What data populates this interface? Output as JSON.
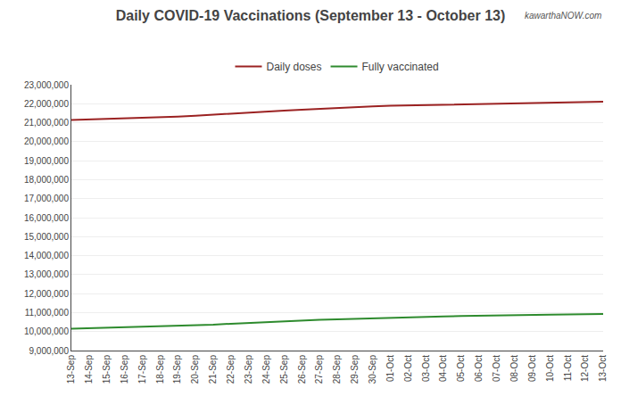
{
  "chart_data": {
    "type": "line",
    "title": "Daily COVID-19 Vaccinations (September 13 - October 13)",
    "annotations": [
      "kawarthaNOW.com"
    ],
    "categories": [
      "13-Sep",
      "14-Sep",
      "15-Sep",
      "16-Sep",
      "17-Sep",
      "18-Sep",
      "19-Sep",
      "20-Sep",
      "21-Sep",
      "22-Sep",
      "23-Sep",
      "24-Sep",
      "25-Sep",
      "26-Sep",
      "27-Sep",
      "28-Sep",
      "29-Sep",
      "30-Sep",
      "01-Oct",
      "02-Oct",
      "03-Oct",
      "04-Oct",
      "05-Oct",
      "06-Oct",
      "07-Oct",
      "08-Oct",
      "09-Oct",
      "10-Oct",
      "11-Oct",
      "12-Oct",
      "13-Oct"
    ],
    "series": [
      {
        "name": "Daily doses",
        "color": "#9B2222",
        "values": [
          21150000,
          21175000,
          21205000,
          21230000,
          21255000,
          21285000,
          21325000,
          21370000,
          21430000,
          21490000,
          21540000,
          21590000,
          21640000,
          21690000,
          21740000,
          21785000,
          21825000,
          21865000,
          21895000,
          21915000,
          21935000,
          21955000,
          21975000,
          21995000,
          22015000,
          22035000,
          22055000,
          22065000,
          22078000,
          22088000,
          22105000
        ]
      },
      {
        "name": "Fully vaccinated",
        "color": "#2E8B2E",
        "values": [
          10150000,
          10175000,
          10200000,
          10220000,
          10240000,
          10265000,
          10295000,
          10325000,
          10365000,
          10415000,
          10460000,
          10500000,
          10540000,
          10580000,
          10620000,
          10650000,
          10680000,
          10705000,
          10728000,
          10752000,
          10775000,
          10795000,
          10818000,
          10838000,
          10858000,
          10872000,
          10882000,
          10892000,
          10900000,
          10910000,
          10925000
        ]
      }
    ],
    "ylim": [
      9000000,
      23000000
    ],
    "yticks": [
      {
        "value": 9000000,
        "label": "9,000,000"
      },
      {
        "value": 10000000,
        "label": "10,000,000"
      },
      {
        "value": 11000000,
        "label": "11,000,000"
      },
      {
        "value": 12000000,
        "label": "12,000,000"
      },
      {
        "value": 13000000,
        "label": "13,000,000"
      },
      {
        "value": 14000000,
        "label": "14,000,000"
      },
      {
        "value": 15000000,
        "label": "15,000,000"
      },
      {
        "value": 16000000,
        "label": "16,000,000"
      },
      {
        "value": 17000000,
        "label": "17,000,000"
      },
      {
        "value": 18000000,
        "label": "18,000,000"
      },
      {
        "value": 19000000,
        "label": "19,000,000"
      },
      {
        "value": 20000000,
        "label": "20,000,000"
      },
      {
        "value": 21000000,
        "label": "21,000,000"
      },
      {
        "value": 22000000,
        "label": "22,000,000"
      },
      {
        "value": 23000000,
        "label": "23,000,000"
      }
    ],
    "grid": true,
    "legend": "top"
  }
}
